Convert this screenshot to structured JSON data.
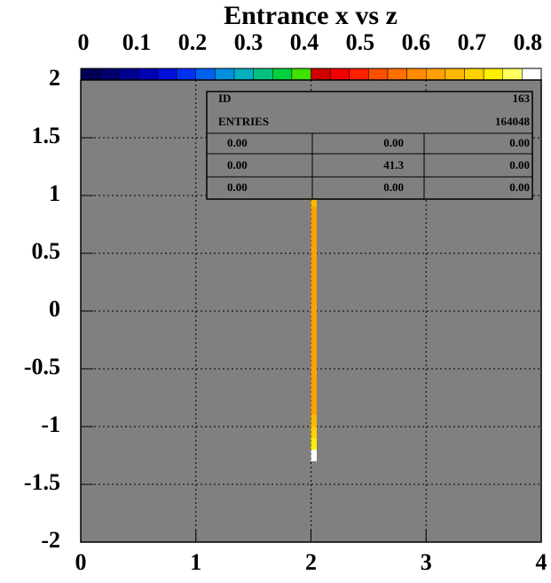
{
  "chart_data": {
    "type": "heatmap",
    "title": "Entrance x vs z",
    "xlim": [
      0,
      4
    ],
    "xticks": [
      0,
      1,
      2,
      3,
      4
    ],
    "ylim": [
      -2,
      2
    ],
    "yticks": [
      -2,
      -1.5,
      -1,
      -0.5,
      0,
      0.5,
      1,
      1.5,
      2
    ],
    "grid": true,
    "background": "#808080",
    "clim": [
      0,
      0.824
    ],
    "cticks": [
      0,
      0.1,
      0.2,
      0.3,
      0.4,
      0.5,
      0.6,
      0.7,
      0.8
    ],
    "palette": [
      "#000055",
      "#00006e",
      "#000090",
      "#0000b4",
      "#0010d8",
      "#0030f0",
      "#0060f0",
      "#0090e0",
      "#00b0c0",
      "#00c080",
      "#00d040",
      "#40e000",
      "#d00000",
      "#f00000",
      "#ff2000",
      "#ff5000",
      "#ff7000",
      "#ff8c00",
      "#ffa000",
      "#ffb800",
      "#ffd000",
      "#ffee00",
      "#ffff60",
      "#ffffff"
    ],
    "xbins": [
      2.0,
      2.05
    ],
    "ybins": [
      -1.3,
      -1.2,
      -1.1,
      -1.0,
      -0.9,
      -0.8,
      -0.7,
      -0.6,
      -0.5,
      -0.4,
      -0.3,
      -0.2,
      -0.1,
      0.0,
      0.1,
      0.2,
      0.3,
      0.4,
      0.5,
      0.6,
      0.7,
      0.8,
      0.9,
      1.0,
      1.1,
      1.2,
      1.3
    ],
    "values": [
      0.82,
      0.74,
      0.7,
      0.66,
      0.64,
      0.62,
      0.62,
      0.62,
      0.62,
      0.62,
      0.62,
      0.62,
      0.62,
      0.62,
      0.62,
      0.62,
      0.62,
      0.62,
      0.62,
      0.62,
      0.63,
      0.64,
      0.66,
      0.68,
      0.72,
      0.76
    ],
    "stats": {
      "labels": [
        "ID",
        "ENTRIES"
      ],
      "values": [
        163,
        164048
      ],
      "table": [
        [
          "0.00",
          "0.00",
          "0.00"
        ],
        [
          "0.00",
          "41.3",
          "0.00"
        ],
        [
          "0.00",
          "0.00",
          "0.00"
        ]
      ]
    }
  }
}
